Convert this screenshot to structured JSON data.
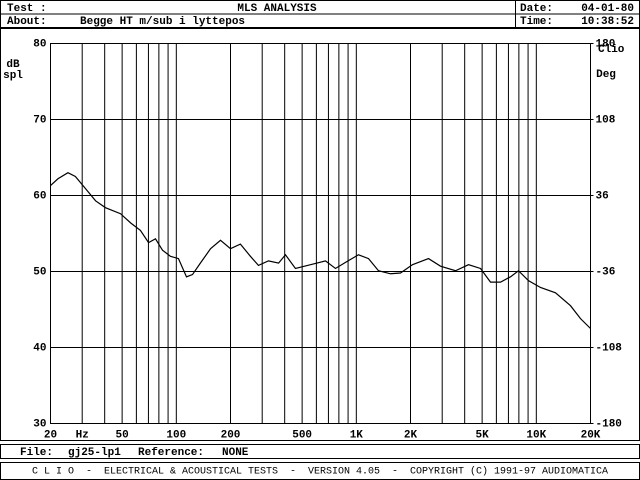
{
  "header": {
    "test_label": "Test :",
    "title": "MLS ANALYSIS",
    "date_label": "Date:",
    "date": "04-01-80",
    "about_label": "About:",
    "about": "Begge HT m/sub i lyttepos",
    "time_label": "Time:",
    "time": "10:38:52"
  },
  "chart_data": {
    "type": "line",
    "ylabel": [
      "dB",
      "spl"
    ],
    "y2label": "Deg",
    "watermark": "Clio",
    "xscale": "log",
    "xlim": [
      20,
      20000
    ],
    "xticks": [
      20,
      {
        "value": 30,
        "label": "Hz"
      },
      50,
      100,
      200,
      500,
      {
        "value": 1000,
        "label": "1K"
      },
      {
        "value": 2000,
        "label": "2K"
      },
      {
        "value": 5000,
        "label": "5K"
      },
      {
        "value": 10000,
        "label": "10K"
      },
      {
        "value": 20000,
        "label": "20K"
      }
    ],
    "xminor": [
      40,
      60,
      70,
      80,
      90,
      300,
      400,
      600,
      700,
      800,
      900,
      3000,
      4000,
      6000,
      7000,
      8000,
      9000
    ],
    "ylim": [
      30,
      80
    ],
    "yticks": [
      30,
      40,
      50,
      60,
      70,
      80
    ],
    "y2lim": [
      -180,
      180
    ],
    "y2ticks": [
      -180,
      -108,
      -36,
      36,
      108,
      180
    ],
    "grid": true,
    "series": [
      {
        "color": "#000000",
        "x": [
          20,
          22,
          25,
          27.5,
          31.3,
          35.6,
          40.4,
          49,
          55.7,
          63.2,
          70.1,
          76.6,
          83.8,
          92.8,
          102.8,
          113.9,
          123,
          136,
          155,
          176,
          200,
          227,
          258,
          286,
          325,
          370,
          404,
          459,
          557,
          674,
          766,
          871,
          1028,
          1169,
          1328,
          1549,
          1760,
          2052,
          2518,
          2936,
          3557,
          4201,
          4898,
          5566,
          6325,
          7187,
          7962,
          9048,
          10550,
          12782,
          15487,
          17600,
          20000
        ],
        "values": [
          61.3,
          62.2,
          63.0,
          62.5,
          60.9,
          59.3,
          58.4,
          57.6,
          56.4,
          55.4,
          53.8,
          54.3,
          52.8,
          52.0,
          51.7,
          49.3,
          49.6,
          51.1,
          53.0,
          54.1,
          53.0,
          53.6,
          52.0,
          50.8,
          51.4,
          51.1,
          52.2,
          50.4,
          50.9,
          51.4,
          50.4,
          51.2,
          52.2,
          51.7,
          50.1,
          49.7,
          49.8,
          50.9,
          51.7,
          50.7,
          50.1,
          50.9,
          50.4,
          48.6,
          48.6,
          49.3,
          50.1,
          48.8,
          47.9,
          47.2,
          45.5,
          43.8,
          42.5
        ]
      }
    ]
  },
  "footer": {
    "file_label": "File:",
    "file": "gj25-lp1",
    "reference_label": "Reference:",
    "reference": "NONE",
    "credits": "C L I O  -  ELECTRICAL & ACOUSTICAL TESTS  -  VERSION 4.05  -  COPYRIGHT (C) 1991-97 AUDIOMATICA"
  }
}
